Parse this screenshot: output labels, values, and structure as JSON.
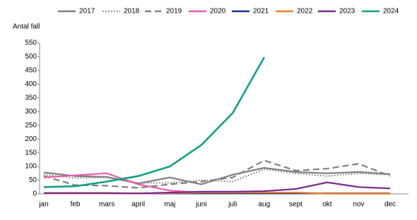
{
  "chart_data": {
    "type": "line",
    "y_label": "Antal fall",
    "categories": [
      "jan",
      "feb",
      "mars",
      "april",
      "maj",
      "juni",
      "juli",
      "aug",
      "sept",
      "okt",
      "nov",
      "dec"
    ],
    "ylim": [
      0,
      550
    ],
    "yticks": [
      0,
      50,
      100,
      150,
      200,
      250,
      300,
      350,
      400,
      450,
      500,
      550
    ],
    "grid": false,
    "legend": "top",
    "series": [
      {
        "name": "2017",
        "color": "#808080",
        "dash": "solid",
        "values": [
          78,
          65,
          62,
          38,
          60,
          35,
          70,
          95,
          80,
          75,
          80,
          72
        ]
      },
      {
        "name": "2018",
        "color": "#808080",
        "dash": "dotted",
        "values": [
          70,
          58,
          60,
          40,
          40,
          50,
          45,
          90,
          75,
          65,
          75,
          70
        ]
      },
      {
        "name": "2019",
        "color": "#808080",
        "dash": "dashed",
        "values": [
          65,
          32,
          30,
          22,
          35,
          45,
          60,
          122,
          85,
          92,
          110,
          65
        ]
      },
      {
        "name": "2020",
        "color": "#e55fa8",
        "dash": "solid",
        "values": [
          60,
          68,
          75,
          35,
          12,
          5,
          5,
          5,
          5,
          2,
          2,
          2
        ]
      },
      {
        "name": "2021",
        "color": "#1f2f8f",
        "dash": "solid",
        "values": [
          3,
          3,
          3,
          2,
          2,
          2,
          2,
          2,
          2,
          2,
          2,
          2
        ]
      },
      {
        "name": "2022",
        "color": "#f07f2a",
        "dash": "solid",
        "values": [
          2,
          2,
          2,
          2,
          3,
          5,
          5,
          5,
          5,
          1,
          1,
          1
        ]
      },
      {
        "name": "2023",
        "color": "#7b2a8c",
        "dash": "solid",
        "values": [
          3,
          3,
          3,
          2,
          5,
          8,
          8,
          10,
          18,
          42,
          25,
          20
        ]
      },
      {
        "name": "2024",
        "color": "#12a085",
        "dash": "solid",
        "values": [
          25,
          28,
          45,
          65,
          100,
          178,
          295,
          498,
          null,
          null,
          null,
          null
        ]
      }
    ]
  }
}
